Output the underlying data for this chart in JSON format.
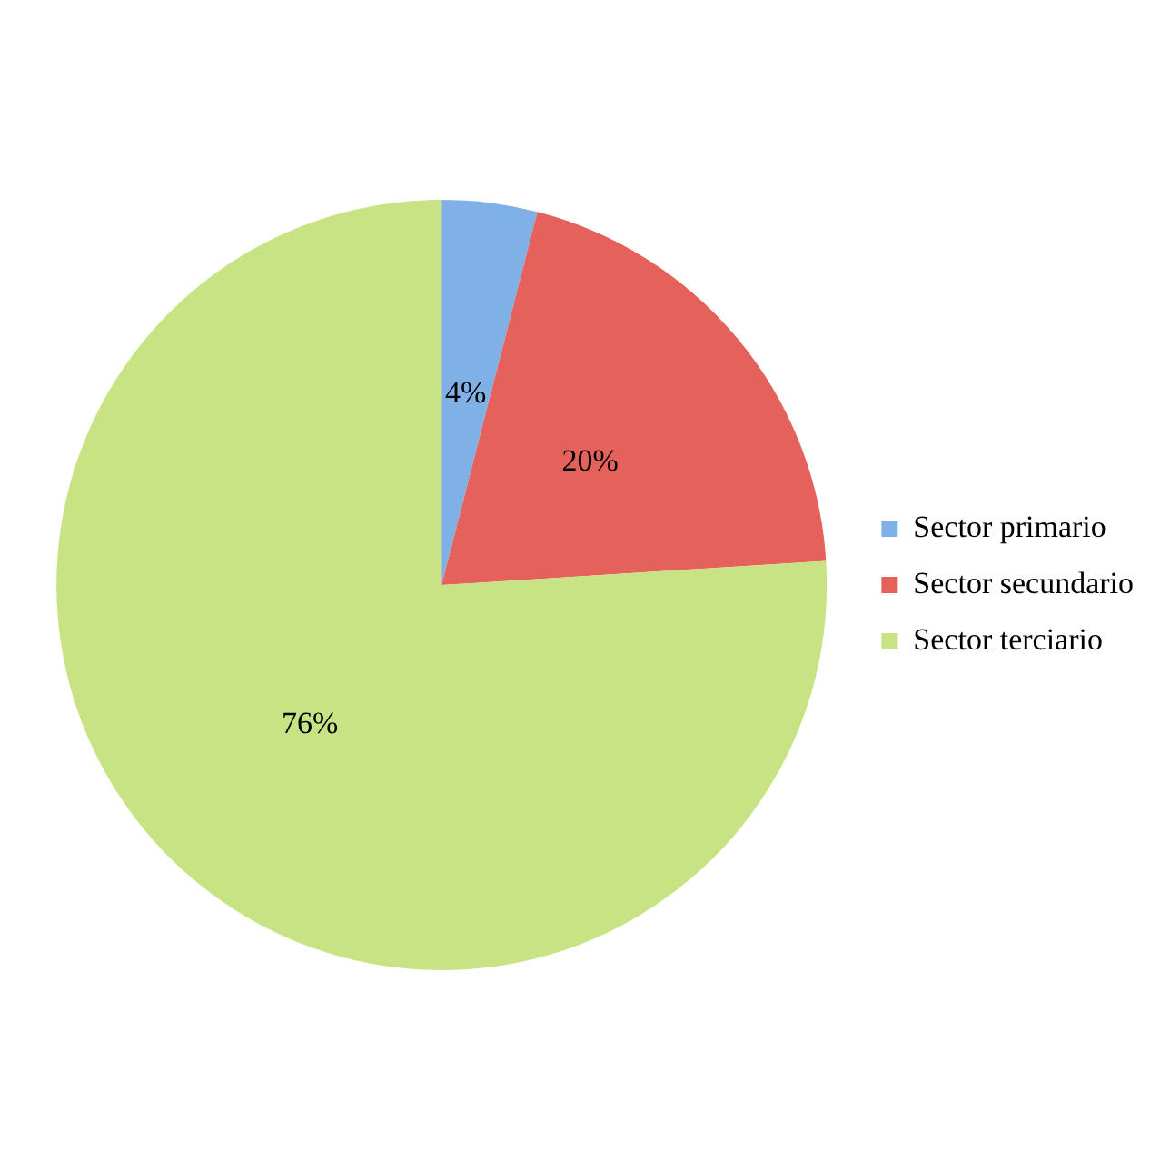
{
  "chart_data": {
    "type": "pie",
    "categories": [
      "Sector primario",
      "Sector secundario",
      "Sector terciario"
    ],
    "values": [
      4,
      20,
      76
    ],
    "colors": [
      "#7fb0e6",
      "#e4625b",
      "#c8e383"
    ],
    "data_labels": true,
    "value_labels": [
      "4%",
      "20%",
      "76%"
    ],
    "legend": "right"
  }
}
